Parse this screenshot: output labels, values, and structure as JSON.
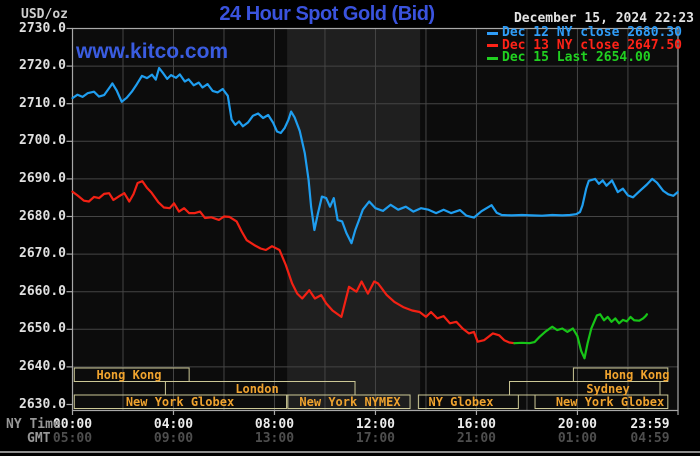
{
  "header": {
    "unit_label": "USD/oz",
    "title": "24 Hour Spot Gold (Bid)",
    "datetime": "December 15, 2024 22:23",
    "title_color": "#3a53de"
  },
  "watermark": {
    "text": "www.kitco.com",
    "color": "#3a5ce0"
  },
  "legend": {
    "items": [
      {
        "label": "Dec 12 NY close 2680.30",
        "color": "#2f9df8"
      },
      {
        "label": "Dec 13 NY close 2647.50",
        "color": "#ff2318"
      },
      {
        "label": "Dec 15 Last 2654.00",
        "color": "#21d121"
      }
    ]
  },
  "axis": {
    "ny_label": "NY Time",
    "gmt_label": "GMT",
    "y_tick_labels": [
      "2730.0",
      "2720.0",
      "2710.0",
      "2700.0",
      "2690.0",
      "2680.0",
      "2670.0",
      "2660.0",
      "2650.0",
      "2640.0",
      "2630.0"
    ],
    "x_ticks": [
      {
        "hour": 0,
        "ny": "00:00",
        "gmt": "05:00"
      },
      {
        "hour": 4,
        "ny": "04:00",
        "gmt": "09:00"
      },
      {
        "hour": 8,
        "ny": "08:00",
        "gmt": "13:00"
      },
      {
        "hour": 12,
        "ny": "12:00",
        "gmt": "17:00"
      },
      {
        "hour": 16,
        "ny": "16:00",
        "gmt": "21:00"
      },
      {
        "hour": 20,
        "ny": "20:00",
        "gmt": "01:00"
      },
      {
        "hour": 23.983,
        "ny": "23:59",
        "gmt": "04:59"
      }
    ]
  },
  "sessions": [
    {
      "label": "Hong Kong",
      "row": 1,
      "start_hour": 0.07,
      "end_hour": 4.62
    },
    {
      "label": "London",
      "row": 2,
      "start_hour": 3.68,
      "end_hour": 11.19
    },
    {
      "label": "New York Globex",
      "row": 3,
      "start_hour": 0.07,
      "end_hour": 8.48
    },
    {
      "label": "New York NYMEX",
      "row": 3,
      "start_hour": 8.53,
      "end_hour": 13.37
    },
    {
      "label": "NY Globex",
      "row": 3,
      "start_hour": 13.7,
      "end_hour": 17.66
    },
    {
      "label": "New York Globex",
      "row": 3,
      "start_hour": 18.32,
      "end_hour": 23.58
    },
    {
      "label": "Sydney",
      "row": 2,
      "start_hour": 17.31,
      "end_hour": 23.27
    },
    {
      "label": "Hong Kong",
      "row": 1,
      "start_hour": 19.84,
      "end_hour": 23.58
    }
  ],
  "colors": {
    "plot_bg": "#0c0c0c",
    "band": "#1f1f1f",
    "grid": "#454545",
    "frame": "#a8a8a8",
    "session_border": "#ccc896",
    "session_text": "#f0a32e"
  },
  "chart_data": {
    "type": "line",
    "title": "24 Hour Spot Gold (Bid)",
    "ylabel": "USD/oz",
    "ylim": [
      2630,
      2730
    ],
    "xlim_hours": [
      0,
      23.983
    ],
    "y_ticks": [
      2630,
      2640,
      2650,
      2660,
      2670,
      2680,
      2690,
      2700,
      2710,
      2720,
      2730
    ],
    "x_gridline_hours": [
      2,
      4,
      6,
      8,
      10,
      12,
      14,
      16,
      18,
      20,
      22
    ],
    "nymex_highlight_band_hours": [
      8.5,
      13.77
    ],
    "grid": true,
    "legend_position": "top-right",
    "series": [
      {
        "name": "Dec 12 NY close",
        "close": 2680.3,
        "color": "#1f9ef0",
        "points": [
          [
            0,
            2711.5
          ],
          [
            0.2,
            2712.4
          ],
          [
            0.4,
            2711.8
          ],
          [
            0.6,
            2712.8
          ],
          [
            0.85,
            2713.2
          ],
          [
            1.05,
            2711.9
          ],
          [
            1.25,
            2712.3
          ],
          [
            1.5,
            2714.6
          ],
          [
            1.58,
            2715.4
          ],
          [
            1.75,
            2713.5
          ],
          [
            1.95,
            2710.5
          ],
          [
            2.15,
            2711.6
          ],
          [
            2.35,
            2713.2
          ],
          [
            2.55,
            2715.2
          ],
          [
            2.75,
            2717.4
          ],
          [
            2.95,
            2716.8
          ],
          [
            3.15,
            2717.7
          ],
          [
            3.3,
            2716.4
          ],
          [
            3.43,
            2719.5
          ],
          [
            3.6,
            2718.0
          ],
          [
            3.75,
            2716.6
          ],
          [
            3.9,
            2717.6
          ],
          [
            4.1,
            2716.9
          ],
          [
            4.25,
            2717.8
          ],
          [
            4.45,
            2715.9
          ],
          [
            4.6,
            2716.5
          ],
          [
            4.8,
            2714.9
          ],
          [
            5.0,
            2715.6
          ],
          [
            5.15,
            2714.3
          ],
          [
            5.35,
            2715.2
          ],
          [
            5.55,
            2713.4
          ],
          [
            5.75,
            2713.0
          ],
          [
            5.95,
            2713.9
          ],
          [
            6.15,
            2712.1
          ],
          [
            6.3,
            2705.8
          ],
          [
            6.45,
            2704.4
          ],
          [
            6.6,
            2705.3
          ],
          [
            6.75,
            2704.0
          ],
          [
            6.95,
            2705.0
          ],
          [
            7.15,
            2706.8
          ],
          [
            7.35,
            2707.4
          ],
          [
            7.55,
            2706.2
          ],
          [
            7.75,
            2707.0
          ],
          [
            7.95,
            2704.9
          ],
          [
            8.1,
            2702.6
          ],
          [
            8.25,
            2702.2
          ],
          [
            8.4,
            2703.5
          ],
          [
            8.55,
            2705.7
          ],
          [
            8.66,
            2707.9
          ],
          [
            8.8,
            2706.3
          ],
          [
            9.0,
            2702.8
          ],
          [
            9.2,
            2696.8
          ],
          [
            9.35,
            2689.7
          ],
          [
            9.45,
            2682.6
          ],
          [
            9.58,
            2676.4
          ],
          [
            9.72,
            2680.8
          ],
          [
            9.88,
            2685.3
          ],
          [
            10.05,
            2684.9
          ],
          [
            10.2,
            2682.6
          ],
          [
            10.35,
            2684.9
          ],
          [
            10.5,
            2679.1
          ],
          [
            10.68,
            2678.7
          ],
          [
            10.85,
            2675.6
          ],
          [
            11.05,
            2672.9
          ],
          [
            11.2,
            2676.4
          ],
          [
            11.35,
            2679.1
          ],
          [
            11.5,
            2681.8
          ],
          [
            11.75,
            2684.0
          ],
          [
            12.0,
            2682.2
          ],
          [
            12.3,
            2681.5
          ],
          [
            12.6,
            2683.1
          ],
          [
            12.9,
            2681.8
          ],
          [
            13.2,
            2682.6
          ],
          [
            13.5,
            2681.3
          ],
          [
            13.8,
            2682.2
          ],
          [
            14.1,
            2681.8
          ],
          [
            14.4,
            2680.9
          ],
          [
            14.7,
            2681.8
          ],
          [
            15.0,
            2680.9
          ],
          [
            15.35,
            2681.7
          ],
          [
            15.6,
            2680.2
          ],
          [
            15.9,
            2679.7
          ],
          [
            16.2,
            2681.4
          ],
          [
            16.6,
            2683.0
          ],
          [
            16.8,
            2681.0
          ],
          [
            17.0,
            2680.4
          ],
          [
            17.4,
            2680.3
          ],
          [
            17.8,
            2680.4
          ],
          [
            18.2,
            2680.3
          ],
          [
            18.6,
            2680.2
          ],
          [
            19.0,
            2680.4
          ],
          [
            19.4,
            2680.3
          ],
          [
            19.7,
            2680.4
          ],
          [
            19.95,
            2680.6
          ],
          [
            20.1,
            2681.2
          ],
          [
            20.2,
            2683.0
          ],
          [
            20.35,
            2687.5
          ],
          [
            20.45,
            2689.5
          ],
          [
            20.7,
            2690.0
          ],
          [
            20.85,
            2688.7
          ],
          [
            21.0,
            2689.6
          ],
          [
            21.15,
            2688.2
          ],
          [
            21.37,
            2689.6
          ],
          [
            21.6,
            2686.5
          ],
          [
            21.8,
            2687.4
          ],
          [
            22.0,
            2685.6
          ],
          [
            22.2,
            2685.1
          ],
          [
            22.5,
            2687.0
          ],
          [
            22.75,
            2688.5
          ],
          [
            22.96,
            2690.0
          ],
          [
            23.15,
            2689.0
          ],
          [
            23.4,
            2686.8
          ],
          [
            23.6,
            2685.9
          ],
          [
            23.8,
            2685.5
          ],
          [
            23.97,
            2686.5
          ]
        ]
      },
      {
        "name": "Dec 13 NY close",
        "close": 2647.5,
        "color": "#f32114",
        "points": [
          [
            0,
            2686.6
          ],
          [
            0.2,
            2685.6
          ],
          [
            0.45,
            2684.2
          ],
          [
            0.65,
            2684.0
          ],
          [
            0.85,
            2685.2
          ],
          [
            1.05,
            2684.9
          ],
          [
            1.25,
            2686.0
          ],
          [
            1.45,
            2686.2
          ],
          [
            1.62,
            2684.4
          ],
          [
            1.85,
            2685.4
          ],
          [
            2.05,
            2686.2
          ],
          [
            2.25,
            2684.0
          ],
          [
            2.42,
            2686.0
          ],
          [
            2.58,
            2688.9
          ],
          [
            2.77,
            2689.4
          ],
          [
            2.95,
            2687.6
          ],
          [
            3.12,
            2686.4
          ],
          [
            3.4,
            2683.8
          ],
          [
            3.62,
            2682.4
          ],
          [
            3.85,
            2682.2
          ],
          [
            4.02,
            2683.5
          ],
          [
            4.22,
            2681.3
          ],
          [
            4.42,
            2682.2
          ],
          [
            4.62,
            2680.9
          ],
          [
            4.85,
            2680.9
          ],
          [
            5.05,
            2681.3
          ],
          [
            5.25,
            2679.6
          ],
          [
            5.5,
            2679.8
          ],
          [
            5.8,
            2679.1
          ],
          [
            6.0,
            2680.0
          ],
          [
            6.22,
            2679.9
          ],
          [
            6.5,
            2678.7
          ],
          [
            6.7,
            2676.0
          ],
          [
            6.9,
            2673.7
          ],
          [
            7.2,
            2672.4
          ],
          [
            7.45,
            2671.5
          ],
          [
            7.66,
            2671.1
          ],
          [
            7.9,
            2672.1
          ],
          [
            8.2,
            2671.1
          ],
          [
            8.45,
            2667.1
          ],
          [
            8.7,
            2662.2
          ],
          [
            8.9,
            2659.5
          ],
          [
            9.1,
            2658.2
          ],
          [
            9.38,
            2660.4
          ],
          [
            9.6,
            2658.2
          ],
          [
            9.85,
            2659.1
          ],
          [
            10.05,
            2656.9
          ],
          [
            10.3,
            2655.0
          ],
          [
            10.65,
            2653.3
          ],
          [
            10.95,
            2661.3
          ],
          [
            11.25,
            2660.0
          ],
          [
            11.45,
            2662.7
          ],
          [
            11.7,
            2659.5
          ],
          [
            11.95,
            2662.7
          ],
          [
            12.1,
            2662.2
          ],
          [
            12.45,
            2659.1
          ],
          [
            12.75,
            2657.3
          ],
          [
            13.1,
            2655.9
          ],
          [
            13.45,
            2655.0
          ],
          [
            13.75,
            2654.6
          ],
          [
            14.0,
            2653.3
          ],
          [
            14.2,
            2654.6
          ],
          [
            14.45,
            2652.9
          ],
          [
            14.7,
            2653.5
          ],
          [
            14.95,
            2651.6
          ],
          [
            15.2,
            2652.0
          ],
          [
            15.45,
            2650.2
          ],
          [
            15.7,
            2648.9
          ],
          [
            15.9,
            2649.3
          ],
          [
            16.05,
            2646.7
          ],
          [
            16.3,
            2647.1
          ],
          [
            16.65,
            2648.9
          ],
          [
            16.9,
            2648.4
          ],
          [
            17.1,
            2647.1
          ],
          [
            17.3,
            2646.5
          ],
          [
            17.5,
            2646.3
          ]
        ]
      },
      {
        "name": "Dec 15 Last",
        "last": 2654.0,
        "color": "#17c517",
        "points": [
          [
            17.5,
            2646.3
          ],
          [
            17.8,
            2646.4
          ],
          [
            18.1,
            2646.3
          ],
          [
            18.3,
            2646.6
          ],
          [
            18.5,
            2648.0
          ],
          [
            18.72,
            2649.3
          ],
          [
            19.0,
            2650.7
          ],
          [
            19.2,
            2649.8
          ],
          [
            19.4,
            2650.2
          ],
          [
            19.6,
            2649.3
          ],
          [
            19.82,
            2650.2
          ],
          [
            20.0,
            2648.2
          ],
          [
            20.15,
            2644.2
          ],
          [
            20.28,
            2642.3
          ],
          [
            20.4,
            2646.2
          ],
          [
            20.55,
            2650.2
          ],
          [
            20.77,
            2653.7
          ],
          [
            20.9,
            2654.0
          ],
          [
            21.05,
            2652.4
          ],
          [
            21.2,
            2653.3
          ],
          [
            21.35,
            2652.0
          ],
          [
            21.5,
            2652.9
          ],
          [
            21.65,
            2651.6
          ],
          [
            21.8,
            2652.5
          ],
          [
            21.95,
            2652.1
          ],
          [
            22.1,
            2653.3
          ],
          [
            22.25,
            2652.4
          ],
          [
            22.45,
            2652.3
          ],
          [
            22.6,
            2652.9
          ],
          [
            22.7,
            2653.5
          ],
          [
            22.75,
            2654.0
          ]
        ]
      }
    ]
  }
}
